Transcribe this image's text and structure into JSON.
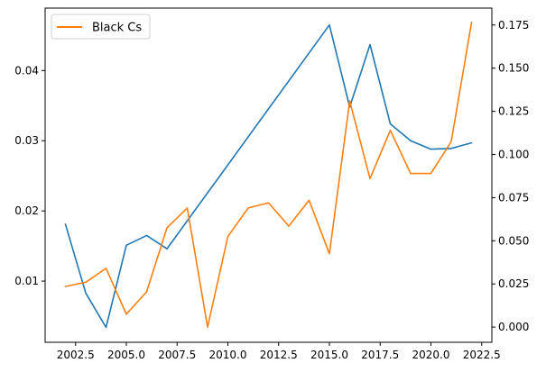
{
  "chart_data": {
    "type": "line",
    "title": "",
    "xlabel": "",
    "ylabel": "",
    "ylabel_right": "",
    "grid": false,
    "legend": {
      "placement": "top-left",
      "entries": [
        "Black Cs"
      ]
    },
    "x": [
      2002,
      2003,
      2004,
      2005,
      2006,
      2007,
      2008,
      2009,
      2010,
      2011,
      2012,
      2013,
      2014,
      2015,
      2016,
      2017,
      2018,
      2019,
      2020,
      2021,
      2022
    ],
    "xlim": [
      2001.0,
      2023.0
    ],
    "x_ticks": [
      2002.5,
      2005.0,
      2007.5,
      2010.0,
      2012.5,
      2015.0,
      2017.5,
      2020.0,
      2022.5
    ],
    "x_tick_labels": [
      "2002.5",
      "2005.0",
      "2007.5",
      "2010.0",
      "2012.5",
      "2015.0",
      "2017.5",
      "2020.0",
      "2022.5"
    ],
    "left_axis": {
      "ylim": [
        0.00128,
        0.0489
      ],
      "ticks": [
        0.01,
        0.02,
        0.03,
        0.04
      ],
      "tick_labels": [
        "0.01",
        "0.02",
        "0.03",
        "0.04"
      ]
    },
    "right_axis": {
      "ylim": [
        -0.0088,
        0.1848
      ],
      "ticks": [
        0.0,
        0.025,
        0.05,
        0.075,
        0.1,
        0.125,
        0.15,
        0.175
      ],
      "tick_labels": [
        "0.000",
        "0.025",
        "0.050",
        "0.075",
        "0.100",
        "0.125",
        "0.150",
        "0.175"
      ]
    },
    "series": [
      {
        "axis": "left",
        "color": "#1f77b4",
        "x": [
          2002,
          2003,
          2004,
          2005,
          2006,
          2007,
          2015,
          2016,
          2017,
          2018,
          2019,
          2020,
          2021,
          2022
        ],
        "values": [
          0.0181,
          0.0083,
          0.0034,
          0.0151,
          0.0165,
          0.0146,
          0.0465,
          0.0348,
          0.0437,
          0.0324,
          0.03,
          0.0288,
          0.0289,
          0.0297
        ]
      },
      {
        "name": "Black Cs",
        "axis": "right",
        "color": "#ff7f0e",
        "x": [
          2002,
          2003,
          2004,
          2005,
          2006,
          2007,
          2008,
          2009,
          2010,
          2011,
          2012,
          2013,
          2014,
          2015,
          2016,
          2017,
          2018,
          2019,
          2020,
          2021,
          2022
        ],
        "values": [
          0.0235,
          0.026,
          0.034,
          0.0075,
          0.0205,
          0.0575,
          0.069,
          0.0,
          0.0525,
          0.069,
          0.072,
          0.0585,
          0.0735,
          0.0425,
          0.131,
          0.086,
          0.114,
          0.089,
          0.089,
          0.1075,
          0.1765
        ]
      }
    ]
  }
}
